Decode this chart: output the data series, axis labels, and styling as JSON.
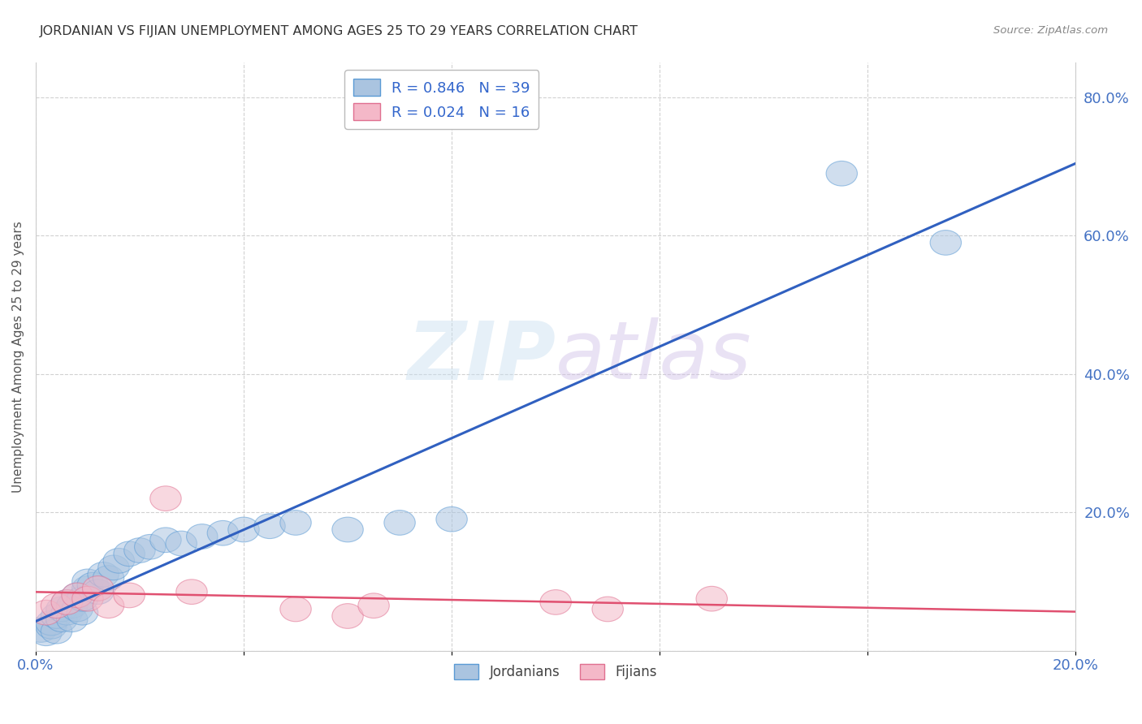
{
  "title": "JORDANIAN VS FIJIAN UNEMPLOYMENT AMONG AGES 25 TO 29 YEARS CORRELATION CHART",
  "source": "Source: ZipAtlas.com",
  "ylabel": "Unemployment Among Ages 25 to 29 years",
  "xlim": [
    0.0,
    0.2
  ],
  "ylim": [
    0.0,
    0.85
  ],
  "xticks": [
    0.0,
    0.04,
    0.08,
    0.12,
    0.16,
    0.2
  ],
  "yticks": [
    0.0,
    0.2,
    0.4,
    0.6,
    0.8
  ],
  "ytick_labels": [
    "",
    "20.0%",
    "40.0%",
    "60.0%",
    "80.0%"
  ],
  "xtick_labels": [
    "0.0%",
    "",
    "",
    "",
    "",
    "20.0%"
  ],
  "jordanians_x": [
    0.001,
    0.002,
    0.003,
    0.003,
    0.004,
    0.004,
    0.005,
    0.005,
    0.006,
    0.006,
    0.007,
    0.007,
    0.008,
    0.008,
    0.009,
    0.009,
    0.01,
    0.01,
    0.011,
    0.012,
    0.013,
    0.014,
    0.015,
    0.016,
    0.018,
    0.02,
    0.022,
    0.025,
    0.028,
    0.032,
    0.036,
    0.04,
    0.045,
    0.05,
    0.06,
    0.07,
    0.08,
    0.155,
    0.175
  ],
  "jordanians_y": [
    0.03,
    0.025,
    0.035,
    0.04,
    0.028,
    0.05,
    0.045,
    0.06,
    0.055,
    0.07,
    0.065,
    0.045,
    0.06,
    0.08,
    0.055,
    0.075,
    0.09,
    0.1,
    0.095,
    0.085,
    0.11,
    0.105,
    0.12,
    0.13,
    0.14,
    0.145,
    0.15,
    0.16,
    0.155,
    0.165,
    0.17,
    0.175,
    0.18,
    0.185,
    0.175,
    0.185,
    0.19,
    0.69,
    0.59
  ],
  "fijians_x": [
    0.002,
    0.004,
    0.006,
    0.008,
    0.01,
    0.012,
    0.014,
    0.018,
    0.025,
    0.03,
    0.05,
    0.06,
    0.065,
    0.1,
    0.11,
    0.13
  ],
  "fijians_y": [
    0.055,
    0.065,
    0.07,
    0.08,
    0.075,
    0.09,
    0.065,
    0.08,
    0.22,
    0.085,
    0.06,
    0.05,
    0.065,
    0.07,
    0.06,
    0.075
  ],
  "blue_color": "#aac4e0",
  "blue_edge_color": "#5b9bd5",
  "pink_color": "#f4b8c8",
  "pink_edge_color": "#e07090",
  "blue_line_color": "#3060c0",
  "pink_line_color": "#e05070",
  "r_jordanians": 0.846,
  "n_jordanians": 39,
  "r_fijians": 0.024,
  "n_fijians": 16,
  "watermark_zip": "ZIP",
  "watermark_atlas": "atlas",
  "background_color": "#ffffff",
  "grid_color": "#cccccc",
  "title_color": "#333333",
  "source_color": "#888888",
  "tick_color": "#4472c4",
  "ylabel_color": "#555555"
}
